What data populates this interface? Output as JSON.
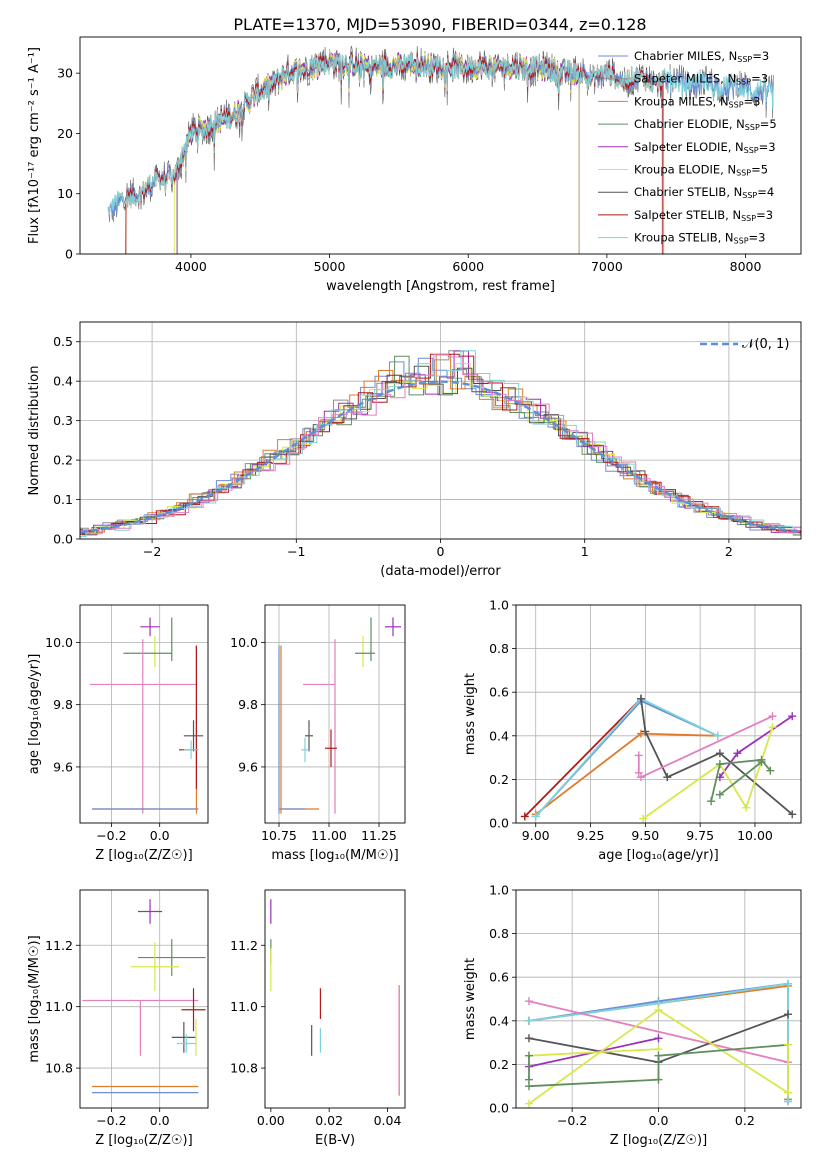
{
  "figure_title": "PLATE=1370, MJD=53090, FIBERID=0344, z=0.128",
  "colors": {
    "Chabrier MILES": "#6a8ed8",
    "Salpeter MILES": "#8e8e8e",
    "Kroupa MILES": "#e07b2a",
    "Chabrier ELODIE": "#5f8f5f",
    "Salpeter ELODIE": "#9b30b8",
    "Kroupa ELODIE": "#d8e84a",
    "Chabrier STELIB": "#555555",
    "Salpeter STELIB": "#b01a1a",
    "Kroupa STELIB": "#7fd3dd",
    "pink": "#e37fbf",
    "normal_curve": "#5b8fd6"
  },
  "chart_data": [
    {
      "type": "line",
      "id": "spectrum",
      "xlabel": "wavelength [Angstrom, rest frame]",
      "ylabel": "Flux [f$_\\lambda$10$^{-17}$ erg cm$^{-2}$ s$^{-1}$ A$^{-1}$]",
      "ylabel_display": "Flux [fλ10⁻¹⁷ erg cm⁻² s⁻¹ A⁻¹]",
      "xlim": [
        3200,
        8400
      ],
      "ylim": [
        0,
        36
      ],
      "xticks": [
        "4000",
        "5000",
        "6000",
        "7000",
        "8000"
      ],
      "yticks": [
        "0",
        "10",
        "20",
        "30"
      ],
      "grid": false,
      "legend_position": "top-right",
      "legend": [
        {
          "name": "Chabrier MILES",
          "suffix": "N",
          "sub": "SSP",
          "value": "=3"
        },
        {
          "name": "Salpeter MILES",
          "suffix": "N",
          "sub": "SSP",
          "value": "=3"
        },
        {
          "name": "Kroupa MILES",
          "suffix": "N",
          "sub": "SSP",
          "value": "=3"
        },
        {
          "name": "Chabrier ELODIE",
          "suffix": "N",
          "sub": "SSP",
          "value": "=5"
        },
        {
          "name": "Salpeter ELODIE",
          "suffix": "N",
          "sub": "SSP",
          "value": "=3"
        },
        {
          "name": "Kroupa ELODIE",
          "suffix": "N",
          "sub": "SSP",
          "value": "=5"
        },
        {
          "name": "Chabrier STELIB",
          "suffix": "N",
          "sub": "SSP",
          "value": "=4"
        },
        {
          "name": "Salpeter STELIB",
          "suffix": "N",
          "sub": "SSP",
          "value": "=3"
        },
        {
          "name": "Kroupa STELIB",
          "suffix": "N",
          "sub": "SSP",
          "value": "=3"
        }
      ],
      "continuum_x": [
        3400,
        3600,
        3800,
        3900,
        4000,
        4100,
        4300,
        4500,
        4700,
        5000,
        5300,
        5600,
        6000,
        6400,
        6800,
        7200,
        7600,
        8000,
        8200
      ],
      "continuum_y": [
        7.5,
        10,
        12.5,
        14,
        20,
        21,
        23,
        27,
        30,
        32,
        31,
        31.5,
        31,
        31,
        30,
        29,
        28.5,
        27.5,
        27
      ]
    },
    {
      "type": "line",
      "id": "residuals",
      "xlabel": "(data-model)/error",
      "ylabel": "Normed distribution",
      "xlim": [
        -2.5,
        2.5
      ],
      "ylim": [
        0,
        0.55
      ],
      "xticks": [
        "−2",
        "−1",
        "0",
        "1",
        "2"
      ],
      "yticks": [
        "0.0",
        "0.1",
        "0.2",
        "0.3",
        "0.4",
        "0.5"
      ],
      "grid": true,
      "legend_position": "top-right",
      "legend_label": "𝒩(0, 1)",
      "bin_width": 0.1,
      "normal": {
        "mean": 0,
        "sigma": 1
      }
    },
    {
      "type": "scatter",
      "id": "age_vs_Z",
      "xlabel": "Z [log₁₀(Z/Z☉)]",
      "ylabel": "age  [log₁₀(age/yr)]",
      "xlim": [
        -0.33,
        0.2
      ],
      "ylim": [
        9.42,
        10.12
      ],
      "xticks": [
        "−0.2",
        "0.0"
      ],
      "yticks": [
        "9.6",
        "9.8",
        "10.0"
      ],
      "grid": true,
      "points": [
        {
          "model": "Salpeter ELODIE",
          "x": -0.04,
          "y": 10.05,
          "xerr": 0.04,
          "yerr": 0.03
        },
        {
          "model": "Chabrier ELODIE",
          "x": 0.05,
          "y": 10.01,
          "xerr": 0.0,
          "yerr": 0.07
        },
        {
          "model": "Kroupa ELODIE",
          "x": -0.02,
          "y": 9.97,
          "xerr": 0.0,
          "yerr": 0.05
        },
        {
          "model": "Chabrier ELODIE",
          "x": -0.05,
          "y": 9.965,
          "xerr": 0.1,
          "yerr": 0.0
        },
        {
          "model": "pink",
          "x": -0.07,
          "y": 9.865,
          "xerr": 0.22,
          "yerr": 0.0
        },
        {
          "model": "pink",
          "x": -0.07,
          "y": 9.73,
          "xerr": 0.0,
          "yerr": 0.28
        },
        {
          "model": "Kroupa MILES",
          "x": 0.152,
          "y": 9.72,
          "xerr": 0.0,
          "yerr": 0.27
        },
        {
          "model": "Salpeter STELIB",
          "x": 0.152,
          "y": 9.76,
          "xerr": 0.0,
          "yerr": 0.23
        },
        {
          "model": "Chabrier STELIB",
          "x": 0.14,
          "y": 9.7,
          "xerr": 0.04,
          "yerr": 0.05
        },
        {
          "model": "Salpeter STELIB",
          "x": 0.12,
          "y": 9.655,
          "xerr": 0.04,
          "yerr": 0.0
        },
        {
          "model": "Kroupa STELIB",
          "x": 0.13,
          "y": 9.655,
          "xerr": 0.03,
          "yerr": 0.03
        },
        {
          "model": "Kroupa MILES",
          "x": -0.06,
          "y": 9.465,
          "xerr": 0.22,
          "yerr": 0.0
        },
        {
          "model": "Chabrier MILES",
          "x": -0.06,
          "y": 9.465,
          "xerr": 0.22,
          "yerr": 0.0
        }
      ]
    },
    {
      "type": "scatter",
      "id": "age_vs_mass",
      "xlabel": "mass [log₁₀(M/M☉)]",
      "xlim": [
        10.68,
        11.38
      ],
      "ylim": [
        9.42,
        10.12
      ],
      "xticks": [
        "10.75",
        "11.00",
        "11.25"
      ],
      "yticks": [
        "9.6",
        "9.8",
        "10.0"
      ],
      "grid": true,
      "points": [
        {
          "model": "Salpeter ELODIE",
          "x": 11.32,
          "y": 10.05,
          "xerr": 0.04,
          "yerr": 0.03
        },
        {
          "model": "Chabrier ELODIE",
          "x": 11.21,
          "y": 10.01,
          "xerr": 0.0,
          "yerr": 0.07
        },
        {
          "model": "Kroupa ELODIE",
          "x": 11.17,
          "y": 9.97,
          "xerr": 0.0,
          "yerr": 0.05
        },
        {
          "model": "Chabrier ELODIE",
          "x": 11.18,
          "y": 9.965,
          "xerr": 0.05,
          "yerr": 0.0
        },
        {
          "model": "pink",
          "x": 10.95,
          "y": 9.865,
          "xerr": 0.08,
          "yerr": 0.0
        },
        {
          "model": "pink",
          "x": 11.03,
          "y": 9.73,
          "xerr": 0.0,
          "yerr": 0.28
        },
        {
          "model": "Kroupa MILES",
          "x": 10.76,
          "y": 9.72,
          "xerr": 0.0,
          "yerr": 0.27
        },
        {
          "model": "Chabrier MILES",
          "x": 10.75,
          "y": 9.72,
          "xerr": 0.0,
          "yerr": 0.27
        },
        {
          "model": "Chabrier STELIB",
          "x": 10.9,
          "y": 9.7,
          "xerr": 0.02,
          "yerr": 0.05
        },
        {
          "model": "Salpeter STELIB",
          "x": 11.01,
          "y": 9.66,
          "xerr": 0.03,
          "yerr": 0.06
        },
        {
          "model": "Kroupa STELIB",
          "x": 10.88,
          "y": 9.655,
          "xerr": 0.02,
          "yerr": 0.04
        },
        {
          "model": "Kroupa MILES",
          "x": 10.85,
          "y": 9.465,
          "xerr": 0.1,
          "yerr": 0.0
        },
        {
          "model": "Chabrier MILES",
          "x": 10.82,
          "y": 9.465,
          "xerr": 0.06,
          "yerr": 0.0
        }
      ]
    },
    {
      "type": "line",
      "id": "massweight_vs_age",
      "xlabel": "age  [log₁₀(age/yr)]",
      "ylabel": "mass weight",
      "xlim": [
        8.91,
        10.21
      ],
      "ylim": [
        0.0,
        1.0
      ],
      "xticks": [
        "9.00",
        "9.25",
        "9.50",
        "9.75",
        "10.00"
      ],
      "yticks": [
        "0.0",
        "0.2",
        "0.4",
        "0.6",
        "0.8",
        "1.0"
      ],
      "grid": true,
      "series": [
        {
          "model": "Salpeter STELIB",
          "x": [
            8.95,
            9.48
          ],
          "y": [
            0.03,
            0.57
          ]
        },
        {
          "model": "Kroupa MILES",
          "x": [
            9.0,
            9.48,
            9.83
          ],
          "y": [
            0.04,
            0.41,
            0.4
          ]
        },
        {
          "model": "Chabrier MILES",
          "x": [
            9.0,
            9.48,
            9.83
          ],
          "y": [
            0.03,
            0.56,
            0.4
          ]
        },
        {
          "model": "Kroupa STELIB",
          "x": [
            9.0,
            9.48,
            9.83
          ],
          "y": [
            0.03,
            0.57,
            0.4
          ]
        },
        {
          "model": "Chabrier STELIB",
          "x": [
            9.48,
            9.5,
            9.6,
            9.84,
            10.17
          ],
          "y": [
            0.57,
            0.42,
            0.21,
            0.32,
            0.04
          ]
        },
        {
          "model": "pink",
          "x": [
            9.48,
            10.08
          ],
          "y": [
            0.21,
            0.49
          ]
        },
        {
          "model": "Salpeter ELODIE",
          "x": [
            9.84,
            9.92,
            10.17
          ],
          "y": [
            0.21,
            0.32,
            0.49
          ]
        },
        {
          "model": "Kroupa ELODIE",
          "x": [
            9.49,
            9.84,
            9.96,
            10.08
          ],
          "y": [
            0.02,
            0.27,
            0.07,
            0.44
          ]
        },
        {
          "model": "Chabrier ELODIE",
          "x": [
            9.8,
            9.84,
            10.03,
            10.07
          ],
          "y": [
            0.1,
            0.27,
            0.29,
            0.24
          ]
        },
        {
          "model": "Chabrier ELODIE",
          "x": [
            9.84,
            10.03
          ],
          "y": [
            0.13,
            0.28
          ]
        },
        {
          "model": "pink",
          "x": [
            9.47,
            9.47
          ],
          "y": [
            0.23,
            0.31
          ]
        }
      ]
    },
    {
      "type": "scatter",
      "id": "mass_vs_Z",
      "xlabel": "Z [log₁₀(Z/Z☉)]",
      "ylabel": "mass [log₁₀(M/M☉)]",
      "xlim": [
        -0.33,
        0.2
      ],
      "ylim": [
        10.67,
        11.38
      ],
      "xticks": [
        "−0.2",
        "0.0"
      ],
      "yticks": [
        "10.8",
        "11.0",
        "11.2"
      ],
      "grid": true,
      "points": [
        {
          "model": "Salpeter ELODIE",
          "x": -0.04,
          "y": 11.31,
          "xerr": 0.05,
          "yerr": 0.04
        },
        {
          "model": "Chabrier ELODIE",
          "x": 0.05,
          "y": 11.16,
          "xerr": 0.14,
          "yerr": 0.06
        },
        {
          "model": "Kroupa ELODIE",
          "x": -0.02,
          "y": 11.13,
          "xerr": 0.1,
          "yerr": 0.08
        },
        {
          "model": "pink",
          "x": -0.08,
          "y": 11.02,
          "xerr": 0.24,
          "yerr": 0.0
        },
        {
          "model": "pink",
          "x": -0.08,
          "y": 10.93,
          "xerr": 0.0,
          "yerr": 0.09
        },
        {
          "model": "Salpeter STELIB",
          "x": 0.14,
          "y": 10.99,
          "xerr": 0.05,
          "yerr": 0.07
        },
        {
          "model": "Chabrier STELIB",
          "x": 0.1,
          "y": 10.9,
          "xerr": 0.05,
          "yerr": 0.05
        },
        {
          "model": "Kroupa STELIB",
          "x": 0.11,
          "y": 10.88,
          "xerr": 0.04,
          "yerr": 0.03
        },
        {
          "model": "Kroupa ELODIE",
          "x": 0.15,
          "y": 10.9,
          "xerr": 0.0,
          "yerr": 0.06
        },
        {
          "model": "Kroupa MILES",
          "x": -0.06,
          "y": 10.74,
          "xerr": 0.22,
          "yerr": 0.0
        },
        {
          "model": "Chabrier MILES",
          "x": -0.06,
          "y": 10.72,
          "xerr": 0.22,
          "yerr": 0.0
        }
      ]
    },
    {
      "type": "scatter",
      "id": "mass_vs_ebv",
      "xlabel": "E(B-V)",
      "xlim": [
        -0.002,
        0.046
      ],
      "ylim": [
        10.67,
        11.38
      ],
      "xticks": [
        "0.00",
        "0.02",
        "0.04"
      ],
      "yticks": [
        "10.8",
        "11.0",
        "11.2"
      ],
      "grid": false,
      "points": [
        {
          "model": "Salpeter ELODIE",
          "x": 0.0,
          "y": 11.31,
          "xerr": 0.0,
          "yerr": 0.04
        },
        {
          "model": "Chabrier ELODIE",
          "x": 0.0,
          "y": 11.18,
          "xerr": 0.0,
          "yerr": 0.04
        },
        {
          "model": "Kroupa ELODIE",
          "x": 0.0,
          "y": 11.12,
          "xerr": 0.0,
          "yerr": 0.07
        },
        {
          "model": "Salpeter STELIB",
          "x": 0.017,
          "y": 11.01,
          "xerr": 0.0,
          "yerr": 0.05
        },
        {
          "model": "Chabrier STELIB",
          "x": 0.014,
          "y": 10.89,
          "xerr": 0.0,
          "yerr": 0.05
        },
        {
          "model": "Kroupa STELIB",
          "x": 0.017,
          "y": 10.89,
          "xerr": 0.0,
          "yerr": 0.04
        },
        {
          "model": "Kroupa MILES",
          "x": 0.044,
          "y": 10.89,
          "xerr": 0.0,
          "yerr": 0.18
        },
        {
          "model": "pink",
          "x": 0.044,
          "y": 10.89,
          "xerr": 0.0,
          "yerr": 0.17
        }
      ]
    },
    {
      "type": "line",
      "id": "massweight_vs_Z",
      "xlabel": "Z [log₁₀(Z/Z☉)]",
      "ylabel": "mass weight",
      "xlim": [
        -0.33,
        0.33
      ],
      "ylim": [
        0.0,
        1.0
      ],
      "xticks": [
        "−0.2",
        "0.0",
        "0.2"
      ],
      "yticks": [
        "0.0",
        "0.2",
        "0.4",
        "0.6",
        "0.8",
        "1.0"
      ],
      "grid": true,
      "series": [
        {
          "model": "Kroupa MILES",
          "x": [
            -0.3,
            0.0,
            0.3,
            0.3
          ],
          "y": [
            0.4,
            0.48,
            0.56,
            0.04
          ]
        },
        {
          "model": "Chabrier MILES",
          "x": [
            -0.3,
            0.0,
            0.3,
            0.3
          ],
          "y": [
            0.4,
            0.49,
            0.57,
            0.03
          ]
        },
        {
          "model": "Kroupa STELIB",
          "x": [
            -0.3,
            0.0,
            0.3,
            0.3
          ],
          "y": [
            0.4,
            0.48,
            0.57,
            0.03
          ]
        },
        {
          "model": "pink",
          "x": [
            -0.3,
            0.3
          ],
          "y": [
            0.49,
            0.21
          ]
        },
        {
          "model": "Chabrier STELIB",
          "x": [
            -0.3,
            0.0,
            0.3
          ],
          "y": [
            0.32,
            0.21,
            0.43
          ]
        },
        {
          "model": "Salpeter ELODIE",
          "x": [
            -0.3,
            0.0
          ],
          "y": [
            0.19,
            0.32
          ]
        },
        {
          "model": "Kroupa ELODIE",
          "x": [
            -0.3,
            0.0,
            0.3
          ],
          "y": [
            0.02,
            0.45,
            0.07
          ]
        },
        {
          "model": "Kroupa ELODIE",
          "x": [
            -0.3,
            0.0
          ],
          "y": [
            0.24,
            0.27
          ]
        },
        {
          "model": "Chabrier ELODIE",
          "x": [
            -0.3,
            0.0,
            0.0,
            0.3
          ],
          "y": [
            0.1,
            0.13,
            0.24,
            0.29
          ]
        },
        {
          "model": "Chabrier ELODIE",
          "x": [
            -0.3,
            -0.3
          ],
          "y": [
            0.13,
            0.24
          ]
        },
        {
          "model": "Kroupa ELODIE",
          "x": [
            0.3,
            0.3
          ],
          "y": [
            0.29,
            0.07
          ]
        }
      ]
    }
  ]
}
